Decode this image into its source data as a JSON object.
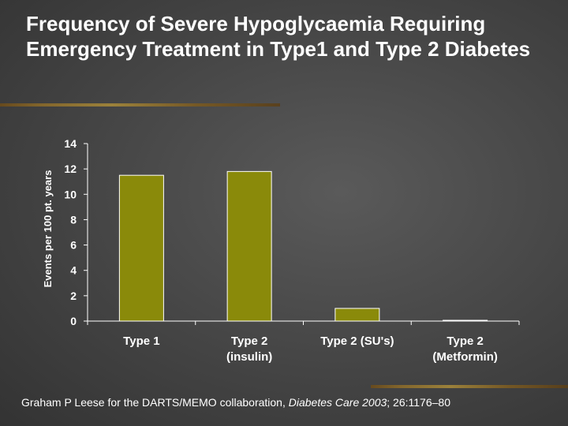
{
  "slide": {
    "title": "Frequency of Severe Hypoglycaemia Requiring Emergency Treatment in Type1 and Type 2 Diabetes",
    "citation": {
      "authors": "Graham P Leese for the DARTS/MEMO collaboration,",
      "journal": "Diabetes Care 2003",
      "details": "; 26:1176–80"
    }
  },
  "colors": {
    "bar_fill": "#8a8a0a",
    "bar_stroke": "#ffffff",
    "axis": "#ffffff",
    "text": "#ffffff"
  },
  "chart_data": {
    "type": "bar",
    "categories": [
      "Type 1",
      "Type 2 (insulin)",
      "Type 2 (SU's)",
      "Type 2 (Metformin)"
    ],
    "category_lines": [
      [
        "Type 1"
      ],
      [
        "Type 2",
        "(insulin)"
      ],
      [
        "Type 2 (SU's)"
      ],
      [
        "Type 2",
        "(Metformin)"
      ]
    ],
    "values": [
      11.5,
      11.8,
      1.0,
      0.05
    ],
    "ylabel": "Events per 100 pt. years",
    "xlabel": "",
    "ylim": [
      0,
      14
    ],
    "yticks": [
      0,
      2,
      4,
      6,
      8,
      10,
      12,
      14
    ],
    "grid": false
  }
}
